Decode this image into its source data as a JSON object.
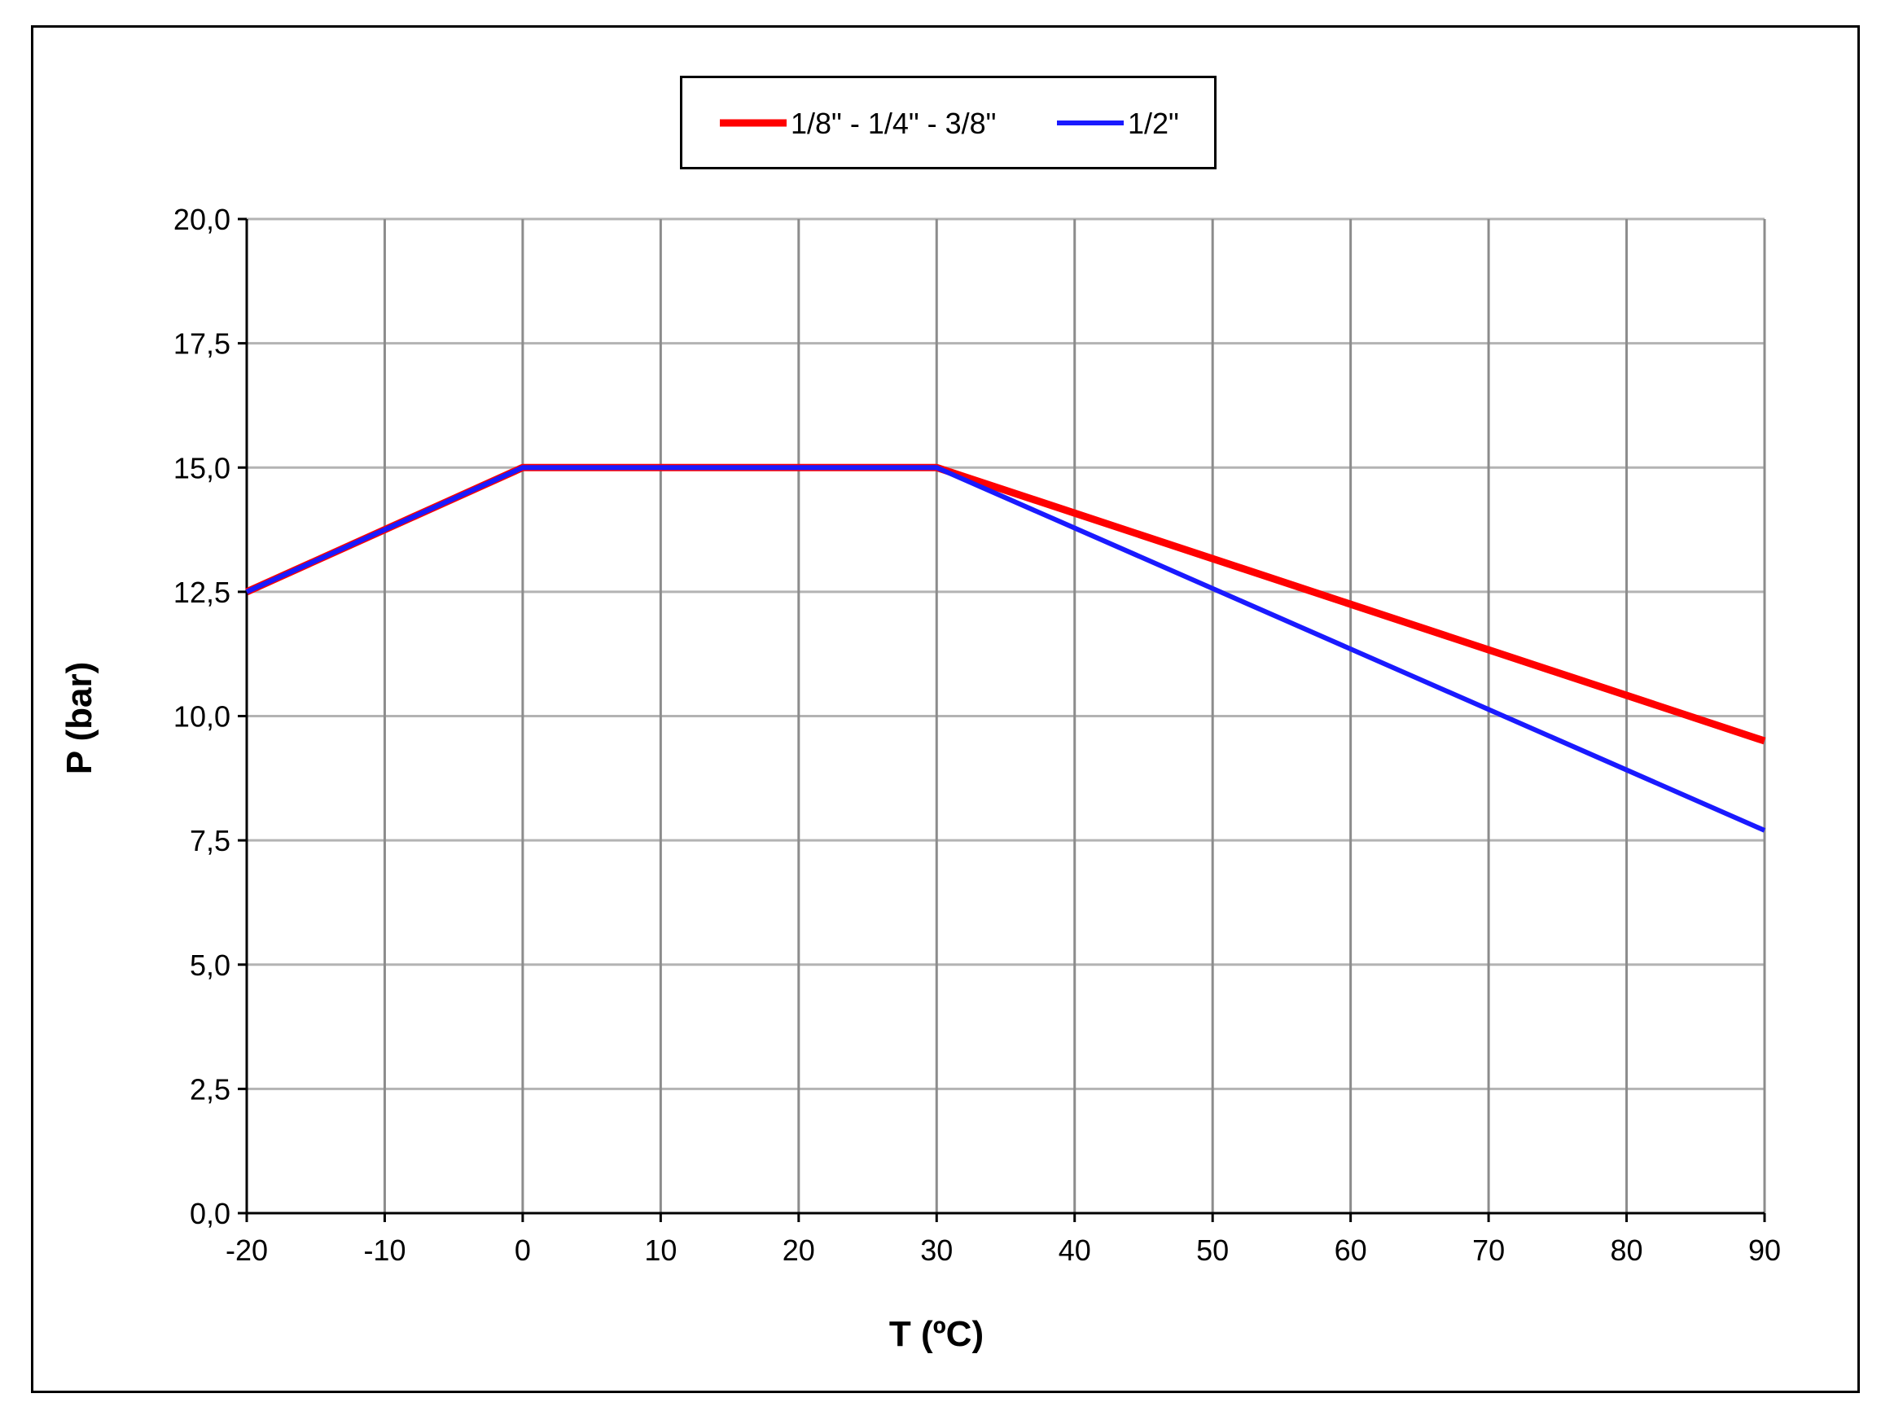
{
  "chart_data": {
    "type": "line",
    "title": "",
    "xlabel": "T (ºC)",
    "ylabel": "P (bar)",
    "xlim": [
      -20,
      90
    ],
    "ylim": [
      0,
      20
    ],
    "x_ticks": [
      -20,
      -10,
      0,
      10,
      20,
      30,
      40,
      50,
      60,
      70,
      80,
      90
    ],
    "x_tick_labels": [
      "-20",
      "-10",
      "0",
      "10",
      "20",
      "30",
      "40",
      "50",
      "60",
      "70",
      "80",
      "90"
    ],
    "y_ticks": [
      0,
      2.5,
      5,
      7.5,
      10,
      12.5,
      15,
      17.5,
      20
    ],
    "y_tick_labels": [
      "0,0",
      "2,5",
      "5,0",
      "7,5",
      "10,0",
      "12,5",
      "15,0",
      "17,5",
      "20,0"
    ],
    "grid": true,
    "legend_position": "top-center",
    "series": [
      {
        "name": "1/8\" - 1/4\" - 3/8\"",
        "color": "#ff0000",
        "x": [
          -20,
          0,
          30,
          90
        ],
        "y": [
          12.5,
          15.0,
          15.0,
          9.5
        ]
      },
      {
        "name": "1/2\"",
        "color": "#1a1aff",
        "x": [
          -20,
          0,
          30,
          90
        ],
        "y": [
          12.5,
          15.0,
          15.0,
          7.7
        ]
      }
    ]
  }
}
